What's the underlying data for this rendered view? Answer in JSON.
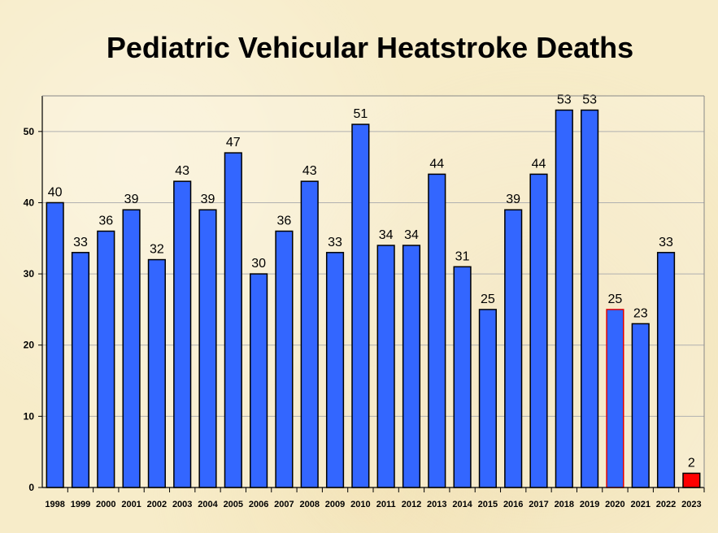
{
  "chart_data": {
    "type": "bar",
    "title": "Pediatric Vehicular Heatstroke Deaths",
    "xlabel": "",
    "ylabel": "",
    "ylim": [
      0,
      55
    ],
    "yticks": [
      0,
      10,
      20,
      30,
      40,
      50
    ],
    "grid": true,
    "categories": [
      "1998",
      "1999",
      "2000",
      "2001",
      "2002",
      "2003",
      "2004",
      "2005",
      "2006",
      "2007",
      "2008",
      "2009",
      "2010",
      "2011",
      "2012",
      "2013",
      "2014",
      "2015",
      "2016",
      "2017",
      "2018",
      "2019",
      "2020",
      "2021",
      "2022",
      "2023"
    ],
    "values": [
      40,
      33,
      36,
      39,
      32,
      43,
      39,
      47,
      30,
      36,
      43,
      33,
      51,
      34,
      34,
      44,
      31,
      25,
      39,
      44,
      53,
      53,
      25,
      23,
      33,
      2
    ],
    "colors": {
      "default_fill": "#3366ff",
      "default_stroke": "#000000",
      "highlight_2020_stroke": "#e00000",
      "highlight_2023_fill": "#ff0000",
      "gridline": "#b0b0b0",
      "plot_background": "#fbf5e6"
    }
  }
}
